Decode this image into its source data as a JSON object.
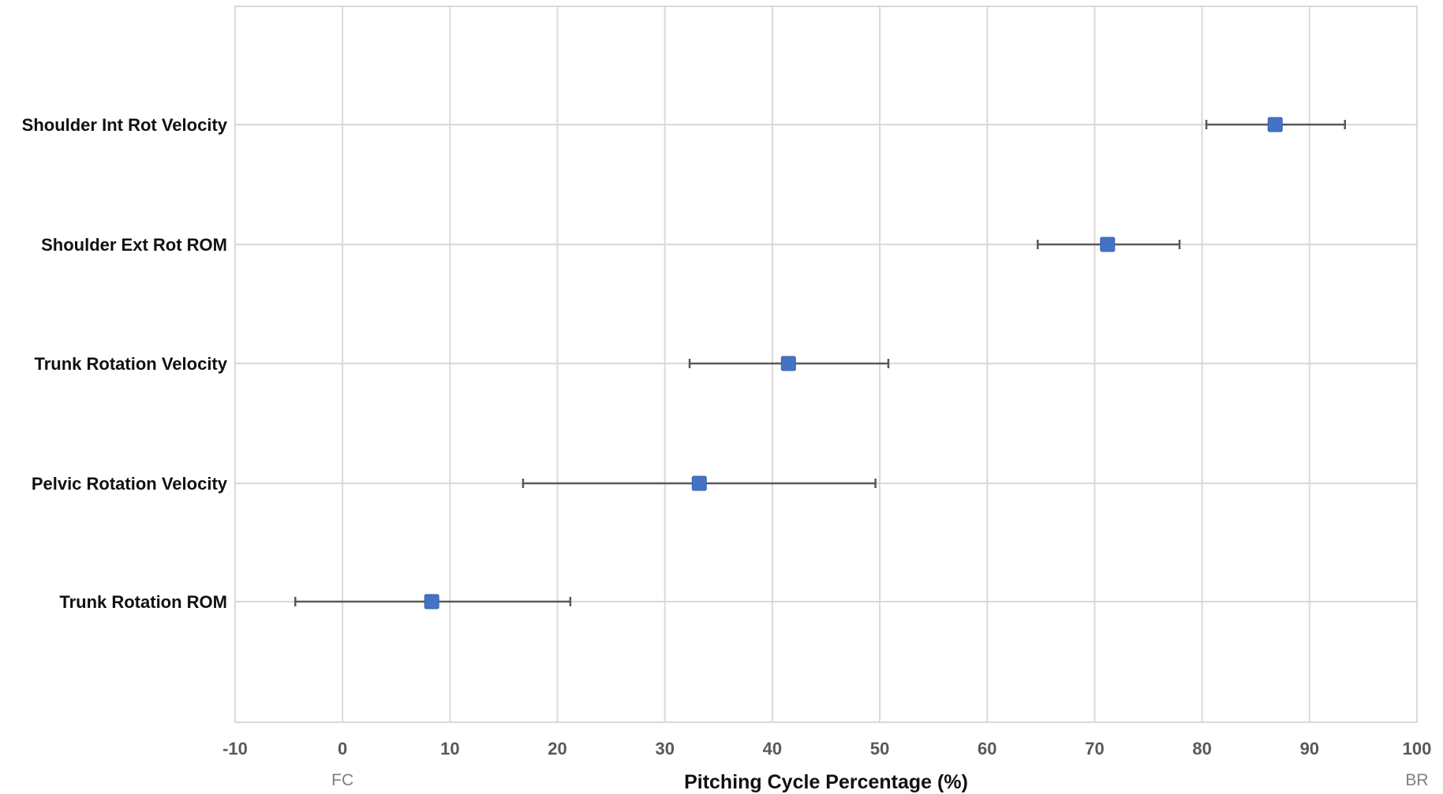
{
  "chart_data": {
    "type": "scatter",
    "orientation": "horizontal",
    "xlabel": "Pitching Cycle Percentage (%)",
    "ylabel": "",
    "xlim": [
      -10,
      100
    ],
    "x_ticks": [
      -10,
      0,
      10,
      20,
      30,
      40,
      50,
      60,
      70,
      80,
      90,
      100
    ],
    "x_annotations": [
      {
        "x": 0,
        "label": "FC"
      },
      {
        "x": 100,
        "label": "BR"
      }
    ],
    "grid": true,
    "marker_color": "#4472C4",
    "error_bar_color": "#595959",
    "categories": [
      "Shoulder Int Rot Velocity",
      "Shoulder Ext Rot ROM",
      "Trunk Rotation Velocity",
      "Pelvic Rotation Velocity",
      "Trunk Rotation ROM"
    ],
    "points": [
      {
        "category": "Shoulder Int Rot Velocity",
        "x": 86.8,
        "low": 80.4,
        "high": 93.3
      },
      {
        "category": "Shoulder Ext Rot ROM",
        "x": 71.2,
        "low": 64.7,
        "high": 77.9
      },
      {
        "category": "Trunk Rotation Velocity",
        "x": 41.5,
        "low": 32.3,
        "high": 50.8
      },
      {
        "category": "Pelvic Rotation Velocity",
        "x": 33.2,
        "low": 16.8,
        "high": 49.6
      },
      {
        "category": "Trunk Rotation ROM",
        "x": 8.3,
        "low": -4.4,
        "high": 21.2
      }
    ]
  }
}
